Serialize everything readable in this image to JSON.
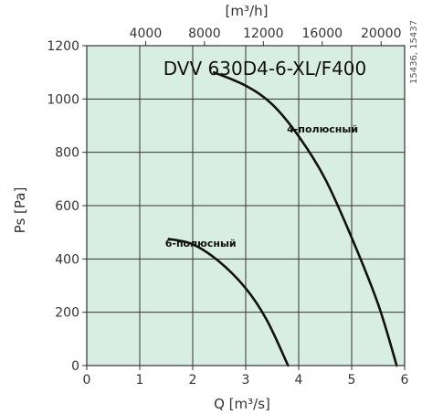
{
  "chart_data": {
    "type": "line",
    "title": "DVV 630D4-6-XL/F400",
    "side_note": "15436, 15437",
    "xlabel": "Q [m³/s]",
    "ylabel": "Ps [Pa]",
    "x2label": "[m³/h]",
    "xlim": [
      0,
      6
    ],
    "ylim": [
      0,
      1200
    ],
    "x2lim": [
      0,
      21600
    ],
    "x_ticks": [
      0,
      1,
      2,
      3,
      4,
      5,
      6
    ],
    "y_ticks": [
      0,
      200,
      400,
      600,
      800,
      1000,
      1200
    ],
    "x2_ticks": [
      4000,
      8000,
      12000,
      16000,
      20000
    ],
    "grid": true,
    "plot_background": "#d8eee5",
    "series": [
      {
        "name": "4-полюсный",
        "color": "#111111",
        "x": [
          2.4,
          3.0,
          3.5,
          4.0,
          4.5,
          5.0,
          5.5,
          5.85
        ],
        "y": [
          1100,
          1050,
          980,
          860,
          700,
          480,
          230,
          0
        ]
      },
      {
        "name": "6-полюсный",
        "color": "#111111",
        "x": [
          1.55,
          2.0,
          2.5,
          3.0,
          3.4,
          3.8
        ],
        "y": [
          475,
          455,
          390,
          290,
          170,
          0
        ]
      }
    ]
  }
}
